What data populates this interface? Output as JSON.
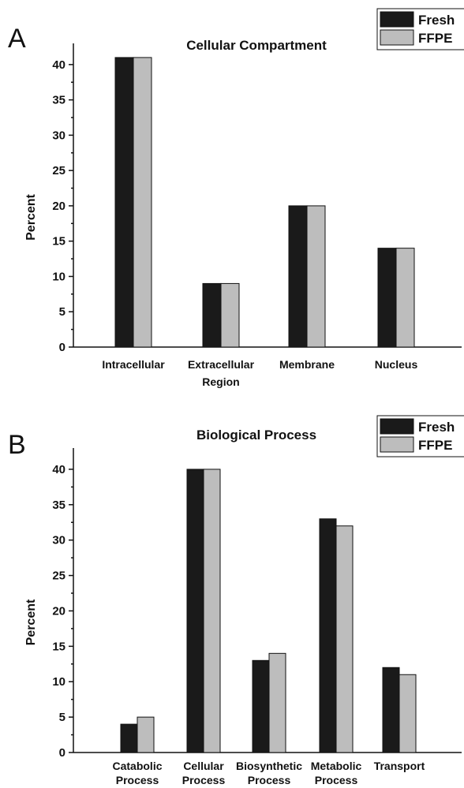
{
  "colors": {
    "Fresh": "#1a1a1a",
    "FFPE": "#bdbdbd"
  },
  "chart_data": [
    {
      "type": "bar",
      "panel": "A",
      "title": "Cellular Compartment",
      "xlabel": "",
      "ylabel": "Percent",
      "ylim": [
        0,
        43
      ],
      "yticks": [
        0,
        5,
        10,
        15,
        20,
        25,
        30,
        35,
        40
      ],
      "categories": [
        [
          "Intracellular"
        ],
        [
          "Extracellular",
          "Region"
        ],
        [
          "Membrane"
        ],
        [
          "Nucleus"
        ]
      ],
      "series": [
        {
          "name": "Fresh",
          "values": [
            41,
            9,
            20,
            14
          ]
        },
        {
          "name": "FFPE",
          "values": [
            41,
            9,
            20,
            14
          ]
        }
      ],
      "legend": "top-right",
      "grid": false
    },
    {
      "type": "bar",
      "panel": "B",
      "title": "Biological Process",
      "xlabel": "",
      "ylabel": "Percent",
      "ylim": [
        0,
        43
      ],
      "yticks": [
        0,
        5,
        10,
        15,
        20,
        25,
        30,
        35,
        40
      ],
      "categories": [
        [
          "Catabolic",
          "Process"
        ],
        [
          "Cellular",
          "Process"
        ],
        [
          "Biosynthetic",
          "Process"
        ],
        [
          "Metabolic",
          "Process"
        ],
        [
          "Transport"
        ]
      ],
      "series": [
        {
          "name": "Fresh",
          "values": [
            4,
            40,
            13,
            33,
            12
          ]
        },
        {
          "name": "FFPE",
          "values": [
            5,
            40,
            14,
            32,
            11
          ]
        }
      ],
      "legend": "top-right",
      "grid": false
    }
  ]
}
